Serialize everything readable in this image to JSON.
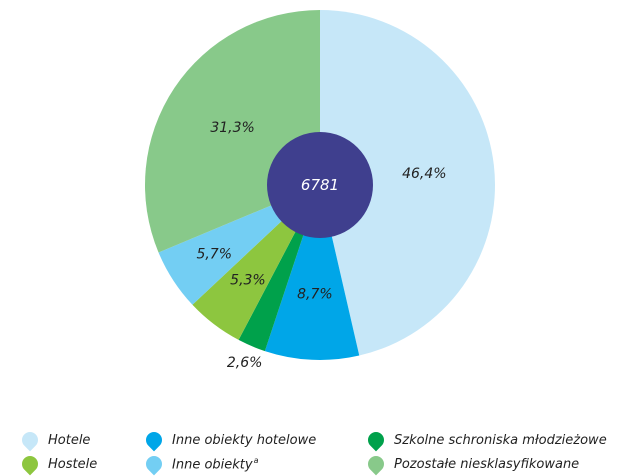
{
  "chart_data": {
    "type": "pie",
    "title": "",
    "center_value": "6781",
    "slices": [
      {
        "label": "Hotele",
        "value": 46.4,
        "value_label": "46,4%",
        "color": "#c6e7f8"
      },
      {
        "label": "Inne obiekty hotelowe",
        "value": 8.7,
        "value_label": "8,7%",
        "color": "#00a6e8"
      },
      {
        "label": "Szkolne schroniska młodzieżowe",
        "value": 2.6,
        "value_label": "2,6%",
        "color": "#00a14b"
      },
      {
        "label": "Hostele",
        "value": 5.3,
        "value_label": "5,3%",
        "color": "#8dc63f"
      },
      {
        "label": "Inne obiekty",
        "value": 5.7,
        "value_label": "5,7%",
        "color": "#73cef3"
      },
      {
        "label": "Pozostałe niesklasyfikowane",
        "value": 31.3,
        "value_label": "31,3%",
        "color": "#88c98a"
      }
    ],
    "legend": {
      "placement": "bottom",
      "items": [
        {
          "label": "Hotele",
          "sup": "",
          "color": "#c6e7f8"
        },
        {
          "label": "Hostele",
          "sup": "",
          "color": "#8dc63f"
        },
        {
          "label": "Inne obiekty hotelowe",
          "sup": "",
          "color": "#00a6e8"
        },
        {
          "label": "Inne obiekty",
          "sup": "a",
          "color": "#73cef3"
        },
        {
          "label": "Szkolne schroniska młodzieżowe",
          "sup": "",
          "color": "#00a14b"
        },
        {
          "label": "Pozostałe niesklasyfikowane",
          "sup": "",
          "color": "#88c98a"
        }
      ]
    },
    "center_color": "#3f3f8e"
  }
}
